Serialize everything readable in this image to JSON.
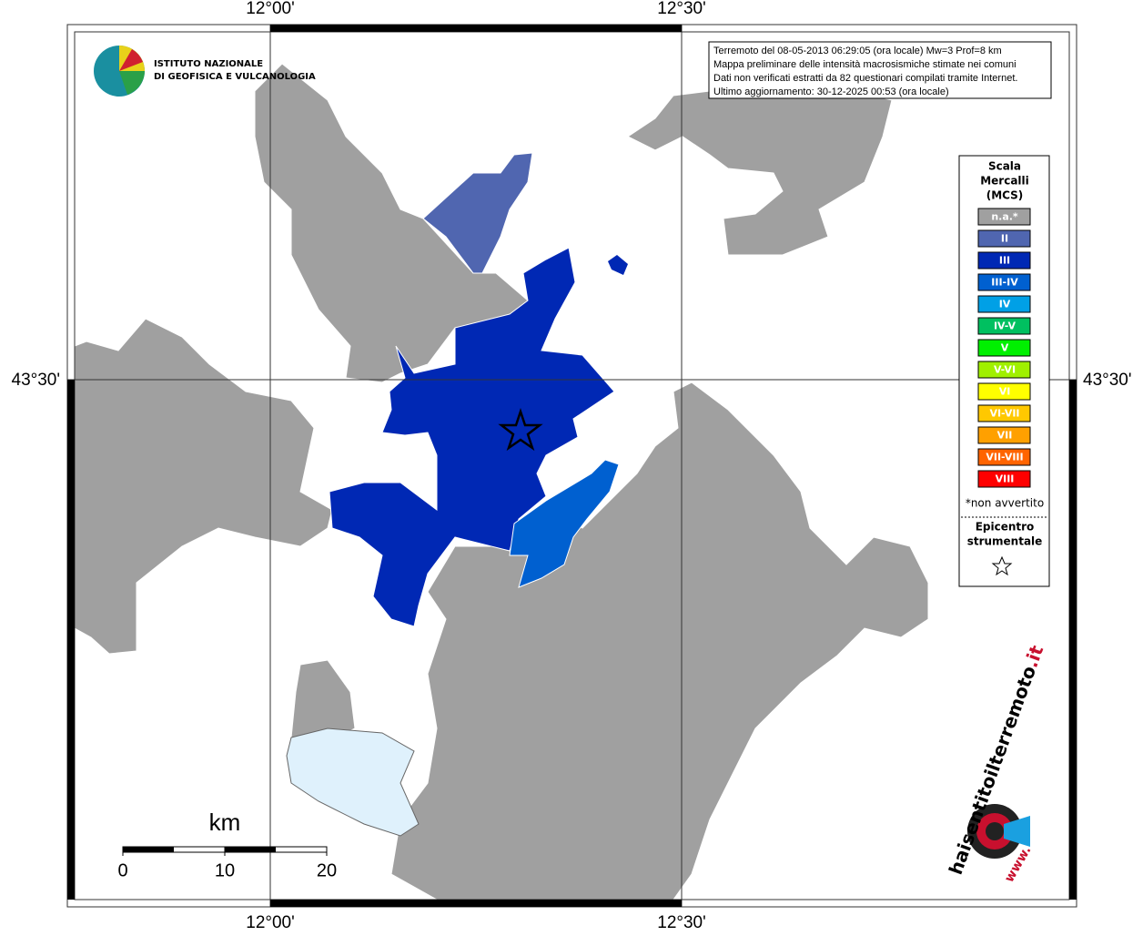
{
  "graticule": {
    "lon_labels": [
      "12°00'",
      "12°30'"
    ],
    "lat_labels": [
      "43°30'"
    ]
  },
  "info": [
    "Terremoto del 08-05-2013 06:29:05 (ora locale) Mw=3 Prof=8 km",
    "Mappa preliminare delle intensità macrosismiche stimate nei comuni",
    "Dati non verificati estratti da 82 questionari compilati tramite Internet.",
    "Ultimo aggiornamento: 30-12-2025 00:53 (ora locale)"
  ],
  "institute_logo": [
    "ISTITUTO NAZIONALE",
    "DI GEOFISICA E VULCANOLOGIA"
  ],
  "legend": {
    "title": [
      "Scala",
      "Mercalli",
      "(MCS)"
    ],
    "items": [
      {
        "label": "n.a.*",
        "color": "#a0a0a0"
      },
      {
        "label": "II",
        "color": "#5066b0"
      },
      {
        "label": "III",
        "color": "#0028b4"
      },
      {
        "label": "III-IV",
        "color": "#0060d0"
      },
      {
        "label": "IV",
        "color": "#00a0e6"
      },
      {
        "label": "IV-V",
        "color": "#00c060"
      },
      {
        "label": "V",
        "color": "#00f000"
      },
      {
        "label": "V-VI",
        "color": "#a0f000"
      },
      {
        "label": "VI",
        "color": "#ffff00"
      },
      {
        "label": "VI-VII",
        "color": "#ffc800"
      },
      {
        "label": "VII",
        "color": "#ffa000"
      },
      {
        "label": "VII-VIII",
        "color": "#ff6400"
      },
      {
        "label": "VIII",
        "color": "#ff0000"
      }
    ],
    "note": "*non avvertito",
    "epicenter": [
      "Epicentro",
      "strumentale"
    ]
  },
  "scale_bar": {
    "unit": "km",
    "ticks": [
      0,
      10,
      20
    ]
  },
  "site_logo": {
    "name": "haisentitoilterremoto",
    "domain": ".it",
    "prefix": "www."
  }
}
